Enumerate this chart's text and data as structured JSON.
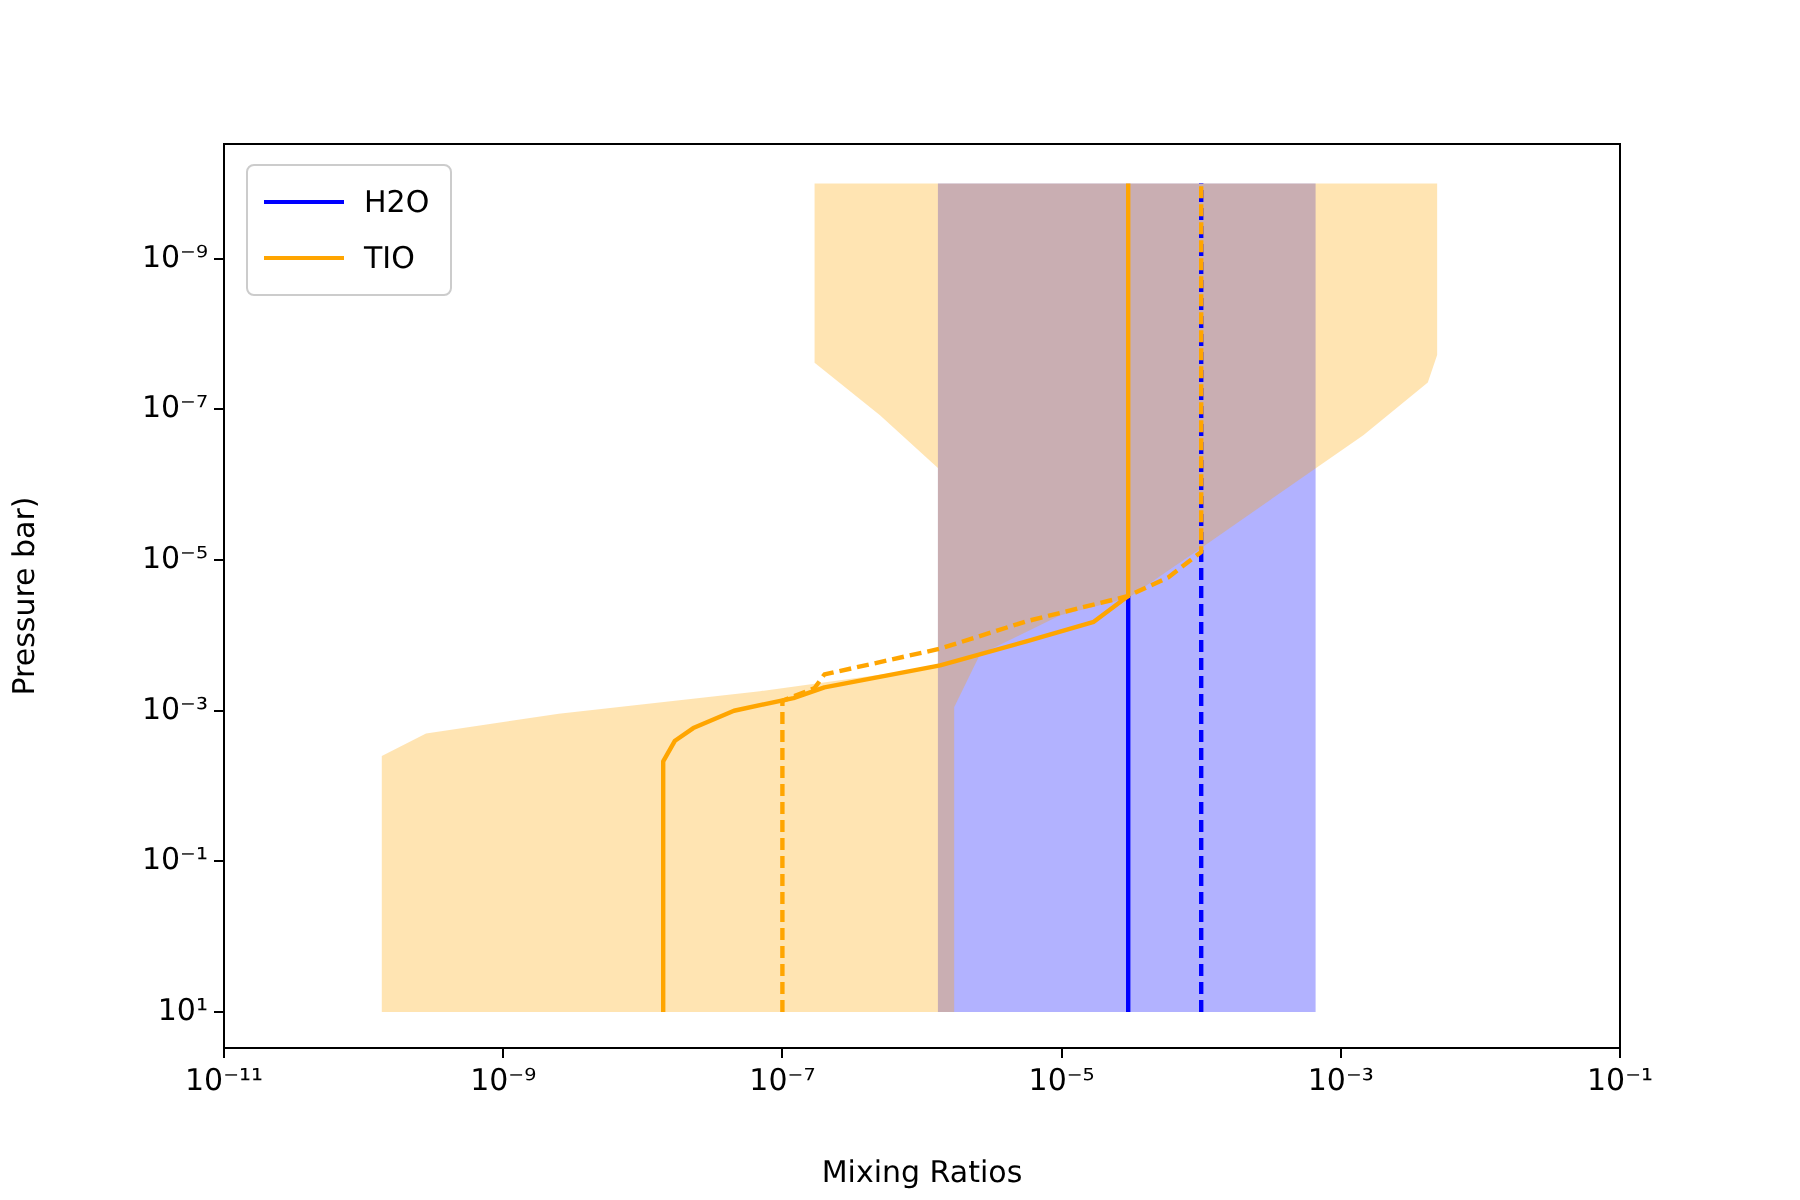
{
  "chart_data": {
    "type": "line",
    "xlabel": "Mixing Ratios",
    "ylabel": "Pressure bar)",
    "log": "xy",
    "grid": false,
    "legend": "top left",
    "marker": "none",
    "xlim": [
      1e-11,
      0.1
    ],
    "ylim": [
      30,
      3e-11
    ],
    "xticks": [
      {
        "value": 1e-11,
        "label": "10⁻¹¹"
      },
      {
        "value": 1e-09,
        "label": "10⁻⁹"
      },
      {
        "value": 1e-07,
        "label": "10⁻⁷"
      },
      {
        "value": 1e-05,
        "label": "10⁻⁵"
      },
      {
        "value": 0.001,
        "label": "10⁻³"
      },
      {
        "value": 0.1,
        "label": "10⁻¹"
      }
    ],
    "yticks": [
      {
        "value": 10,
        "label": "10¹"
      },
      {
        "value": 0.1,
        "label": "10⁻¹"
      },
      {
        "value": 0.001,
        "label": "10⁻³"
      },
      {
        "value": 1e-05,
        "label": "10⁻⁵"
      },
      {
        "value": 1e-07,
        "label": "10⁻⁷"
      },
      {
        "value": 1e-09,
        "label": "10⁻⁹"
      }
    ],
    "series": [
      {
        "type": "area",
        "color": "#0000ff",
        "x": [
          1.3e-06,
          0.00066,
          0.00066,
          1.3e-06
        ],
        "values": [
          10,
          10,
          1e-10,
          1e-10
        ]
      },
      {
        "type": "area",
        "color": "#ffa500",
        "x": [
          1.7e-07,
          1.7e-07,
          5e-07,
          1.3e-06,
          1.3e-06,
          6.9e-08,
          2.5e-09,
          2.8e-10,
          1.35e-10,
          1.35e-10,
          1.7e-06,
          1.7e-06,
          2.6e-06,
          9.8e-06,
          3e-05,
          0.0001,
          0.00065,
          0.00145,
          0.0042,
          0.0049,
          0.0049
        ],
        "values": [
          1e-10,
          2.4e-08,
          1.2e-07,
          6e-07,
          0.00026,
          0.00055,
          0.0011,
          0.002,
          0.004,
          10,
          10,
          0.0009,
          0.00018,
          5.4e-05,
          3.2e-05,
          6.9e-06,
          6.2e-07,
          2.2e-07,
          4.4e-08,
          1.9e-08,
          1e-10
        ]
      },
      {
        "name": "H2O",
        "color": "#0000ff",
        "line_style": "solid",
        "x": [
          3e-05,
          3e-05
        ],
        "values": [
          10,
          3e-05
        ]
      },
      {
        "color": "#0000ff",
        "line_style": "dashed",
        "x": [
          0.0001,
          0.0001
        ],
        "values": [
          10,
          1e-10
        ]
      },
      {
        "name": "TIO",
        "color": "#ffa500",
        "line_style": "solid",
        "x": [
          1.4e-08,
          1.4e-08,
          1.7e-08,
          2.3e-08,
          4.5e-08,
          1.2e-07,
          2e-07,
          1.35e-06,
          5.6e-06,
          1.7e-05,
          3e-05,
          3e-05
        ],
        "values": [
          10,
          0.0047,
          0.0025,
          0.0017,
          0.001,
          0.00068,
          0.00049,
          0.00025,
          0.00012,
          6.6e-05,
          3e-05,
          1e-10
        ]
      },
      {
        "color": "#ffa500",
        "line_style": "dashed",
        "x": [
          1e-07,
          1e-07,
          1.7e-07,
          2e-07,
          1.35e-06,
          5.6e-06,
          3e-05,
          5.8e-05,
          0.0001,
          0.0001
        ],
        "values": [
          10,
          0.00074,
          0.0005,
          0.00033,
          0.00015,
          6.5e-05,
          3e-05,
          1.7e-05,
          7.8e-06,
          1e-10
        ]
      }
    ]
  }
}
